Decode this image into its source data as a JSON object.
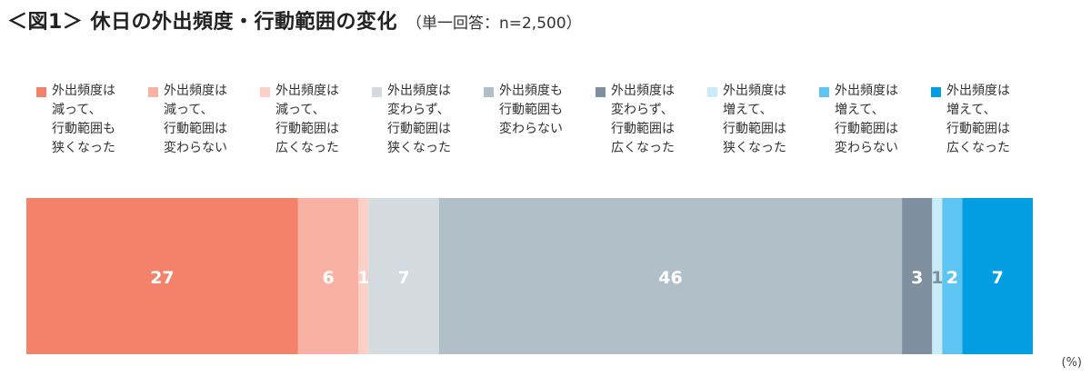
{
  "header": {
    "title": "＜図1＞ 休日の外出頻度・行動範囲の変化",
    "subtitle": "（単一回答：n=2,500）"
  },
  "unit_label": "(%)",
  "chart_data": {
    "type": "bar",
    "orientation": "horizontal-stacked-100",
    "title": "＜図1＞ 休日の外出頻度・行動範囲の変化",
    "subtitle": "（単一回答：n=2,500）",
    "unit": "(%)",
    "legend_position": "top",
    "grid": false,
    "series": [
      {
        "name": "外出頻度は\n減って、\n行動範囲も\n狭くなった",
        "value": 27,
        "color": "#f4826a",
        "label_color": "#ffffff"
      },
      {
        "name": "外出頻度は\n減って、\n行動範囲は\n変わらない",
        "value": 6,
        "color": "#f8b1a3",
        "label_color": "#ffffff"
      },
      {
        "name": "外出頻度は\n減って、\n行動範囲は\n広くなった",
        "value": 1,
        "color": "#fad0c7",
        "label_color": "#ffffff"
      },
      {
        "name": "外出頻度は\n変わらず、\n行動範囲は\n狭くなった",
        "value": 7,
        "color": "#d3dbe1",
        "label_color": "#ffffff"
      },
      {
        "name": "外出頻度も\n行動範囲も\n変わらない",
        "value": 46,
        "color": "#b1bfc9",
        "label_color": "#ffffff"
      },
      {
        "name": "外出頻度は\n変わらず、\n行動範囲は\n広くなった",
        "value": 3,
        "color": "#7e8fa0",
        "label_color": "#ffffff"
      },
      {
        "name": "外出頻度は\n増えて、\n行動範囲は\n狭くなった",
        "value": 1,
        "color": "#c9ecf8",
        "label_color": "#7e8fa0"
      },
      {
        "name": "外出頻度は\n増えて、\n行動範囲は\n変わらない",
        "value": 2,
        "color": "#5ec4f2",
        "label_color": "#ffffff"
      },
      {
        "name": "外出頻度は\n増えて、\n行動範囲は\n広くなった",
        "value": 7,
        "color": "#039ee2",
        "label_color": "#ffffff"
      }
    ]
  }
}
